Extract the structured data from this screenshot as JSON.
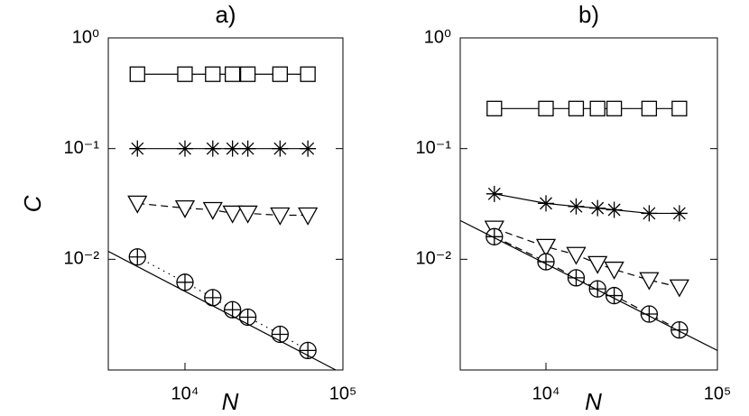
{
  "chart_data": [
    {
      "type": "line",
      "title": "a)",
      "ylabel": "C",
      "xlabel": "N",
      "log_x": true,
      "log_y": true,
      "color": "#000000",
      "x": [
        5000,
        10000,
        15000,
        20000,
        25000,
        40000,
        60000
      ],
      "xlim": [
        3270,
        100000
      ],
      "ylim": [
        0.001,
        1
      ],
      "xticks": [
        {
          "value": 10000,
          "label": "10⁴"
        },
        {
          "value": 100000,
          "label": "10⁵"
        }
      ],
      "yticks": [
        {
          "value": 1,
          "label": "10⁰"
        },
        {
          "value": 0.1,
          "label": "10⁻¹"
        },
        {
          "value": 0.01,
          "label": "10⁻²"
        }
      ],
      "series": [
        {
          "marker": "square",
          "dash": "solid",
          "values": [
            0.47,
            0.47,
            0.47,
            0.47,
            0.47,
            0.47,
            0.47
          ]
        },
        {
          "marker": "star",
          "dash": "solid",
          "values": [
            0.1,
            0.1,
            0.1,
            0.1,
            0.1,
            0.1,
            0.1
          ]
        },
        {
          "marker": "triangle",
          "dash": "dashed",
          "values": [
            0.032,
            0.029,
            0.028,
            0.026,
            0.026,
            0.025,
            0.025
          ]
        },
        {
          "marker": "circle-plus",
          "dash": "dotted",
          "values": [
            0.0105,
            0.0062,
            0.0045,
            0.0035,
            0.003,
            0.0021,
            0.0015
          ]
        },
        {
          "marker": "none",
          "dash": "solid",
          "x": [
            3270,
            90000
          ],
          "values": [
            0.0118,
            0.001
          ]
        }
      ]
    },
    {
      "type": "line",
      "title": "b)",
      "xlabel": "N",
      "log_x": true,
      "log_y": true,
      "color": "#000000",
      "x": [
        5000,
        10000,
        15000,
        20000,
        25000,
        40000,
        60000
      ],
      "xlim": [
        3162,
        100000
      ],
      "ylim": [
        0.001,
        1
      ],
      "xticks": [
        {
          "value": 10000,
          "label": "10⁴"
        },
        {
          "value": 100000,
          "label": "10⁵"
        }
      ],
      "yticks": [
        {
          "value": 1,
          "label": "10⁰"
        },
        {
          "value": 0.1,
          "label": "10⁻¹"
        },
        {
          "value": 0.01,
          "label": "10⁻²"
        }
      ],
      "series": [
        {
          "marker": "square",
          "dash": "solid",
          "values": [
            0.23,
            0.23,
            0.23,
            0.23,
            0.23,
            0.23,
            0.23
          ]
        },
        {
          "marker": "star",
          "dash": "solid",
          "values": [
            0.039,
            0.032,
            0.03,
            0.029,
            0.028,
            0.026,
            0.026
          ]
        },
        {
          "marker": "triangle",
          "dash": "dashed",
          "values": [
            0.019,
            0.013,
            0.011,
            0.0091,
            0.0081,
            0.0065,
            0.0056
          ]
        },
        {
          "marker": "circle-plus",
          "dash": "dashed",
          "values": [
            0.016,
            0.0095,
            0.0068,
            0.0054,
            0.0047,
            0.0032,
            0.0023
          ]
        },
        {
          "marker": "none",
          "dash": "solid",
          "x": [
            3162,
            100000
          ],
          "values": [
            0.0224,
            0.0015
          ]
        }
      ]
    }
  ]
}
